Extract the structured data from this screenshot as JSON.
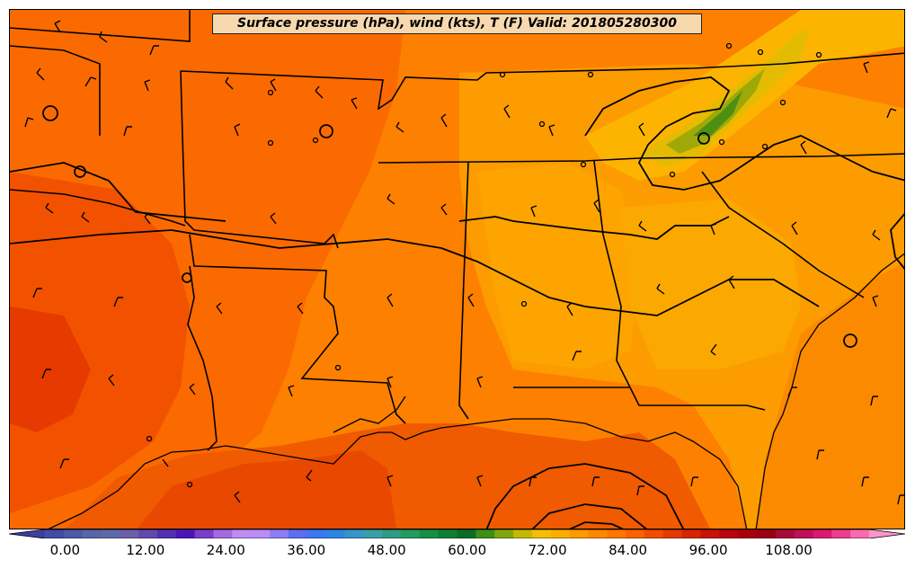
{
  "title": "Surface pressure (hPa), wind (kts), T (F) Valid: 201805280300",
  "colorbar": {
    "ticks": [
      {
        "value": 0,
        "label": "0.00"
      },
      {
        "value": 12,
        "label": "12.00"
      },
      {
        "value": 24,
        "label": "24.00"
      },
      {
        "value": 36,
        "label": "36.00"
      },
      {
        "value": 48,
        "label": "48.00"
      },
      {
        "value": 60,
        "label": "60.00"
      },
      {
        "value": 72,
        "label": "72.00"
      },
      {
        "value": 84,
        "label": "84.00"
      },
      {
        "value": 96,
        "label": "96.00"
      },
      {
        "value": 108,
        "label": "108.00"
      }
    ],
    "min": -3,
    "max": 120,
    "step": 3,
    "colors": [
      "#3b3f9e",
      "#424ba6",
      "#4a5aa8",
      "#5666a8",
      "#5e6aa5",
      "#6a5fa9",
      "#6049ad",
      "#5230b1",
      "#4a17b6",
      "#7a3ec8",
      "#a46be0",
      "#bd8ef0",
      "#b88ef8",
      "#8f7cf5",
      "#5b6ef2",
      "#3a78f0",
      "#2c86e0",
      "#3894c9",
      "#3a9ea6",
      "#2f9b82",
      "#219b62",
      "#158f46",
      "#0d7f33",
      "#0b6e25",
      "#3b8f13",
      "#7fa70a",
      "#c4b803",
      "#f4be02",
      "#fbae00",
      "#fd9a00",
      "#ff8800",
      "#ff7600",
      "#fb6200",
      "#f14d00",
      "#e33a00",
      "#d62500",
      "#c91208",
      "#b8040c",
      "#a8000f",
      "#9b0016",
      "#a60c39",
      "#c01057",
      "#d91a73",
      "#ec3d90",
      "#f76bb0",
      "#fb95cc"
    ]
  }
}
